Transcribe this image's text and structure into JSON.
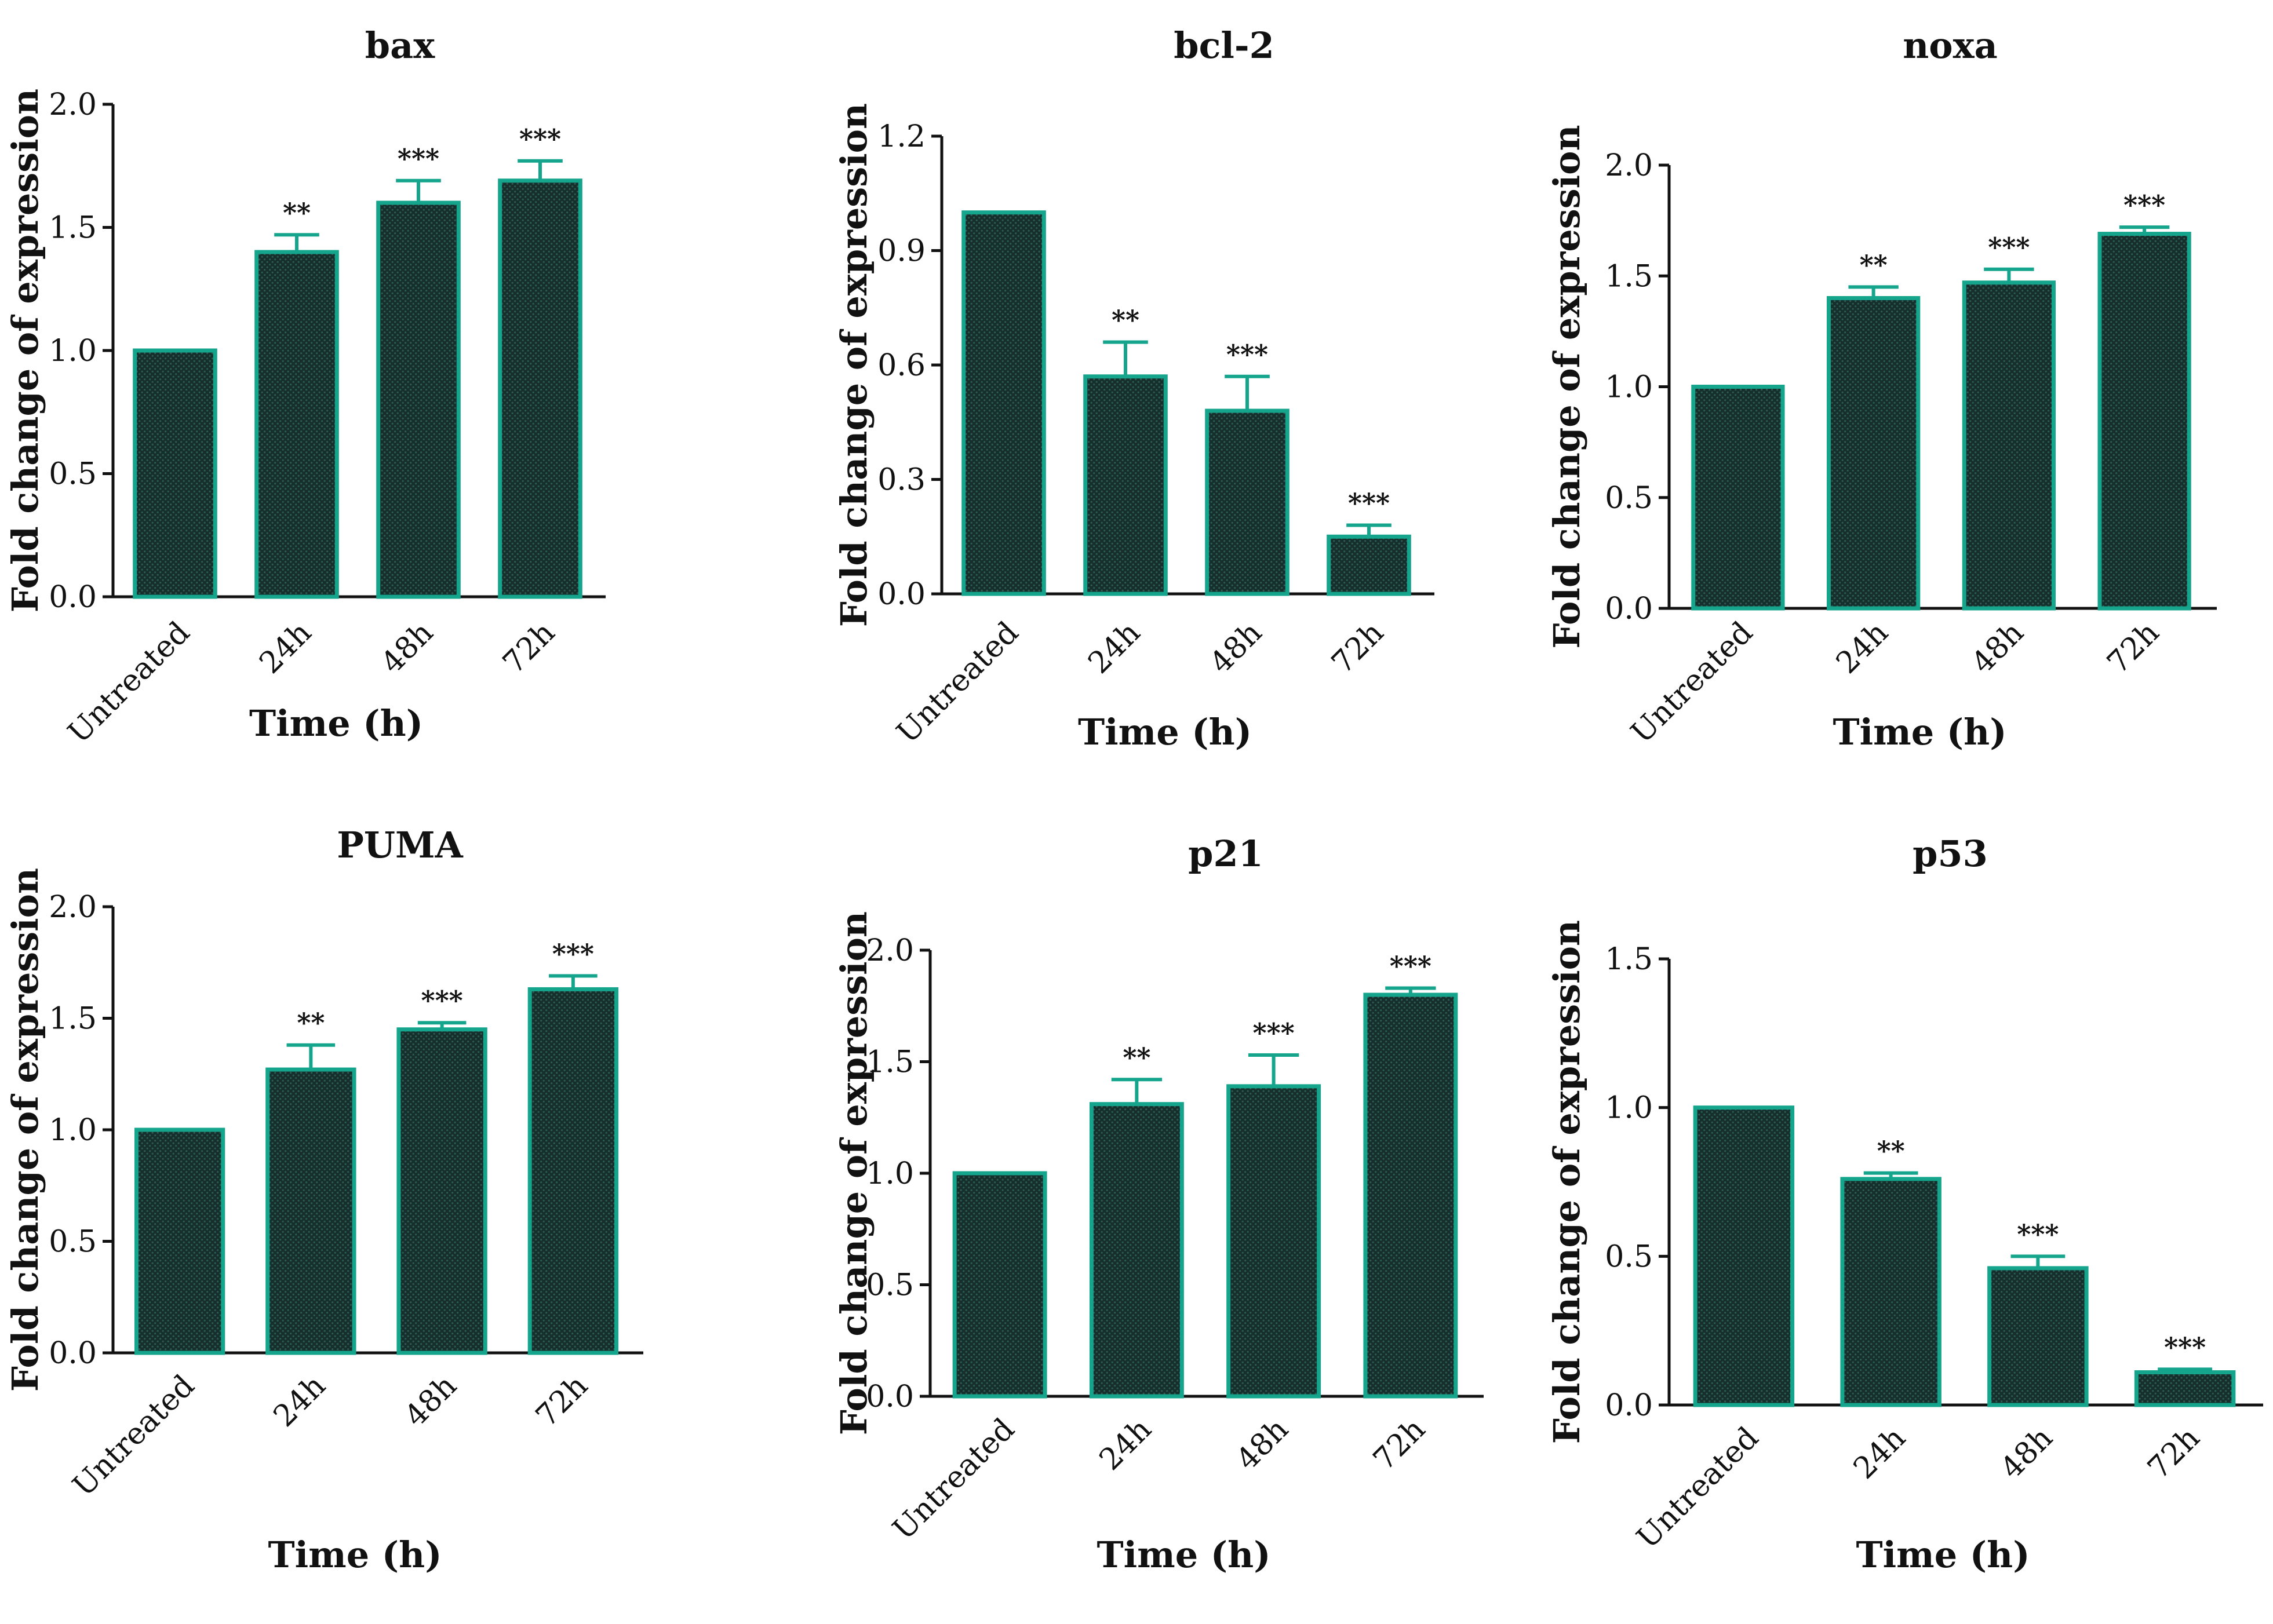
{
  "figure": {
    "colors": {
      "bar_fill": "#162e2c",
      "bar_pattern": "#2b5d54",
      "bar_edge": "#15a58d",
      "axis": "#111111",
      "text": "#111111",
      "background": "#ffffff"
    }
  },
  "chart_data": [
    {
      "type": "bar",
      "title": "bax",
      "xlabel": "Time (h)",
      "ylabel": "Fold change of expression",
      "categories": [
        "Untreated",
        "24h",
        "48h",
        "72h"
      ],
      "values": [
        1.0,
        1.4,
        1.6,
        1.69
      ],
      "errors": [
        0,
        0.07,
        0.09,
        0.08
      ],
      "significance": [
        "",
        "**",
        "***",
        "***"
      ],
      "ylim": [
        0,
        2.0
      ],
      "yticks": [
        "0.0",
        "0.5",
        "1.0",
        "1.5",
        "2.0"
      ]
    },
    {
      "type": "bar",
      "title": "bcl-2",
      "xlabel": "Time (h)",
      "ylabel": "Fold change of expression",
      "categories": [
        "Untreated",
        "24h",
        "48h",
        "72h"
      ],
      "values": [
        1.0,
        0.57,
        0.48,
        0.15
      ],
      "errors": [
        0,
        0.09,
        0.09,
        0.03
      ],
      "significance": [
        "",
        "**",
        "***",
        "***"
      ],
      "ylim": [
        0,
        1.2
      ],
      "yticks": [
        "0.0",
        "0.3",
        "0.6",
        "0.9",
        "1.2"
      ]
    },
    {
      "type": "bar",
      "title": "noxa",
      "xlabel": "Time (h)",
      "ylabel": "Fold change of expression",
      "categories": [
        "Untreated",
        "24h",
        "48h",
        "72h"
      ],
      "values": [
        1.0,
        1.4,
        1.47,
        1.69
      ],
      "errors": [
        0,
        0.05,
        0.06,
        0.03
      ],
      "significance": [
        "",
        "**",
        "***",
        "***"
      ],
      "ylim": [
        0,
        2.0
      ],
      "yticks": [
        "0.0",
        "0.5",
        "1.0",
        "1.5",
        "2.0"
      ]
    },
    {
      "type": "bar",
      "title": "PUMA",
      "xlabel": "Time (h)",
      "ylabel": "Fold change of expression",
      "categories": [
        "Untreated",
        "24h",
        "48h",
        "72h"
      ],
      "values": [
        1.0,
        1.27,
        1.45,
        1.63
      ],
      "errors": [
        0,
        0.11,
        0.03,
        0.06
      ],
      "significance": [
        "",
        "**",
        "***",
        "***"
      ],
      "ylim": [
        0,
        2.0
      ],
      "yticks": [
        "0.0",
        "0.5",
        "1.0",
        "1.5",
        "2.0"
      ]
    },
    {
      "type": "bar",
      "title": "p21",
      "xlabel": "Time (h)",
      "ylabel": "Fold change of expression",
      "categories": [
        "Untreated",
        "24h",
        "48h",
        "72h"
      ],
      "values": [
        1.0,
        1.31,
        1.39,
        1.8
      ],
      "errors": [
        0,
        0.11,
        0.14,
        0.03
      ],
      "significance": [
        "",
        "**",
        "***",
        "***"
      ],
      "ylim": [
        0,
        2.0
      ],
      "yticks": [
        "0.0",
        "0.5",
        "1.0",
        "1.5",
        "2.0"
      ]
    },
    {
      "type": "bar",
      "title": "p53",
      "xlabel": "Time (h)",
      "ylabel": "Fold change of expression",
      "categories": [
        "Untreated",
        "24h",
        "48h",
        "72h"
      ],
      "values": [
        1.0,
        0.76,
        0.46,
        0.11
      ],
      "errors": [
        0,
        0.02,
        0.04,
        0.01
      ],
      "significance": [
        "",
        "**",
        "***",
        "***"
      ],
      "ylim": [
        0,
        1.5
      ],
      "yticks": [
        "0.0",
        "0.5",
        "1.0",
        "1.5"
      ]
    }
  ]
}
